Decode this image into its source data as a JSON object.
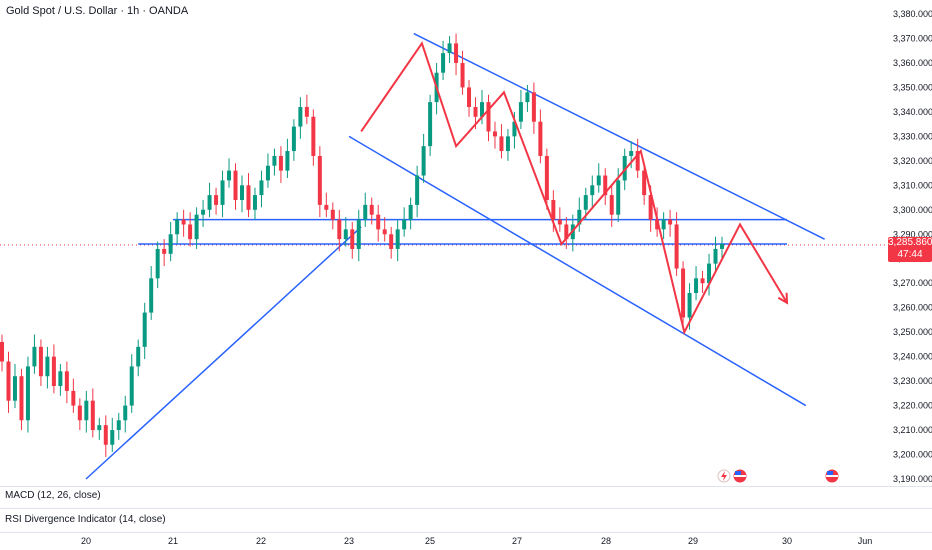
{
  "header": {
    "title": "Gold Spot / U.S. Dollar · 1h · OANDA"
  },
  "indicators": [
    {
      "label": "MACD (12, 26, close)"
    },
    {
      "label": "RSI Divergence Indicator (14, close)"
    }
  ],
  "price_tag": {
    "price": "3,285.860",
    "countdown": "47:44"
  },
  "chart_data": {
    "type": "candlestick",
    "title": "Gold Spot / U.S. Dollar · 1h · OANDA",
    "x_ticks": [
      "20",
      "21",
      "22",
      "23",
      "25",
      "27",
      "28",
      "29",
      "30",
      "Jun"
    ],
    "y_ticks": [
      "3,380.000",
      "3,370.000",
      "3,360.000",
      "3,350.000",
      "3,340.000",
      "3,330.000",
      "3,320.000",
      "3,310.000",
      "3,300.000",
      "3,290.000",
      "3,280.000",
      "3,270.000",
      "3,260.000",
      "3,250.000",
      "3,240.000",
      "3,230.000",
      "3,220.000",
      "3,210.000",
      "3,200.000",
      "3,190.000"
    ],
    "ylim": [
      3190,
      3380
    ],
    "current_price": 3285.86,
    "colors": {
      "up": "#089981",
      "down": "#f23645",
      "trend": "#2962ff",
      "pattern": "#f23645"
    },
    "candle_closes": [
      3238,
      3222,
      3232,
      3214,
      3236,
      3244,
      3232,
      3240,
      3228,
      3234,
      3226,
      3220,
      3214,
      3222,
      3210,
      3212,
      3204,
      3210,
      3214,
      3220,
      3236,
      3244,
      3258,
      3272,
      3284,
      3282,
      3290,
      3296,
      3294,
      3288,
      3298,
      3300,
      3306,
      3302,
      3312,
      3316,
      3304,
      3310,
      3300,
      3306,
      3312,
      3318,
      3322,
      3316,
      3324,
      3334,
      3342,
      3338,
      3322,
      3302,
      3300,
      3296,
      3288,
      3292,
      3284,
      3296,
      3302,
      3298,
      3292,
      3290,
      3284,
      3292,
      3296,
      3302,
      3314,
      3326,
      3344,
      3356,
      3364,
      3368,
      3360,
      3350,
      3342,
      3338,
      3344,
      3332,
      3330,
      3324,
      3330,
      3336,
      3344,
      3348,
      3336,
      3322,
      3304,
      3296,
      3294,
      3288,
      3294,
      3300,
      3306,
      3310,
      3314,
      3306,
      3298,
      3312,
      3322,
      3324,
      3316,
      3306,
      3296,
      3292,
      3296,
      3294,
      3276,
      3256,
      3266,
      3272,
      3270,
      3278,
      3284,
      3286
    ],
    "trend_lines": [
      {
        "name": "support-rising",
        "from": [
          20.0,
          3190
        ],
        "to": [
          23.3,
          3293
        ]
      },
      {
        "name": "resistance-falling",
        "from": [
          24.6,
          3372
        ],
        "to": [
          30.4,
          3288
        ]
      },
      {
        "name": "channel-lower",
        "from": [
          23.0,
          3330
        ],
        "to": [
          30.2,
          3220
        ]
      },
      {
        "name": "horizontal-upper",
        "from": [
          21.0,
          3296
        ],
        "to": [
          30.0,
          3296
        ]
      },
      {
        "name": "horizontal-lower",
        "from": [
          20.6,
          3286
        ],
        "to": [
          30.0,
          3286
        ]
      }
    ],
    "pattern_path": [
      [
        23.3,
        3332
      ],
      [
        24.8,
        3368
      ],
      [
        25.6,
        3326
      ],
      [
        26.7,
        3348
      ],
      [
        27.5,
        3286
      ],
      [
        28.4,
        3324
      ],
      [
        28.9,
        3250
      ],
      [
        29.5,
        3294
      ],
      [
        30.0,
        3262
      ]
    ]
  }
}
